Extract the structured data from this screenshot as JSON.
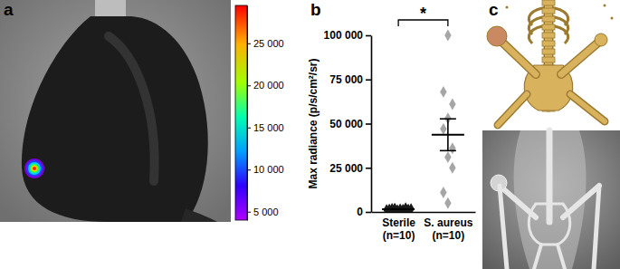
{
  "chart_data": [
    {
      "type": "image",
      "panel_label": "a",
      "colorbar": {
        "range": [
          4000,
          29500
        ],
        "ticks": [
          {
            "value": 5000,
            "label": "5 000"
          },
          {
            "value": 10000,
            "label": "10 000"
          },
          {
            "value": 15000,
            "label": "15 000"
          },
          {
            "value": 20000,
            "label": "20 000"
          },
          {
            "value": 25000,
            "label": "25 000"
          }
        ]
      }
    },
    {
      "type": "scatter",
      "panel_label": "b",
      "categories": [
        "Sterile (n=10)",
        "S. aureus (n=10)"
      ],
      "values": [
        [
          1200,
          1500,
          1800,
          2000,
          1000,
          1600,
          1300,
          2200,
          1400,
          1700
        ],
        [
          100000,
          68000,
          61000,
          53000,
          47000,
          36000,
          31000,
          25000,
          11000,
          5000
        ]
      ],
      "mean": [
        1570,
        43700
      ],
      "error": [
        120,
        9000
      ],
      "colors": [
        "#1a1a1a",
        "#a6a6a6"
      ],
      "marker": "diamond",
      "ylabel": "Max radiance (p/s/cm²/sr)",
      "ylim": [
        0,
        100000
      ],
      "yticks": [
        0,
        {
          "value": 25000,
          "label": "25 000"
        },
        {
          "value": 50000,
          "label": "50 000"
        },
        {
          "value": 75000,
          "label": "75 000"
        },
        {
          "value": 100000,
          "label": "100 000"
        }
      ],
      "annotations": [
        {
          "text": "*"
        }
      ]
    },
    {
      "type": "image",
      "panel_label": "c"
    }
  ]
}
